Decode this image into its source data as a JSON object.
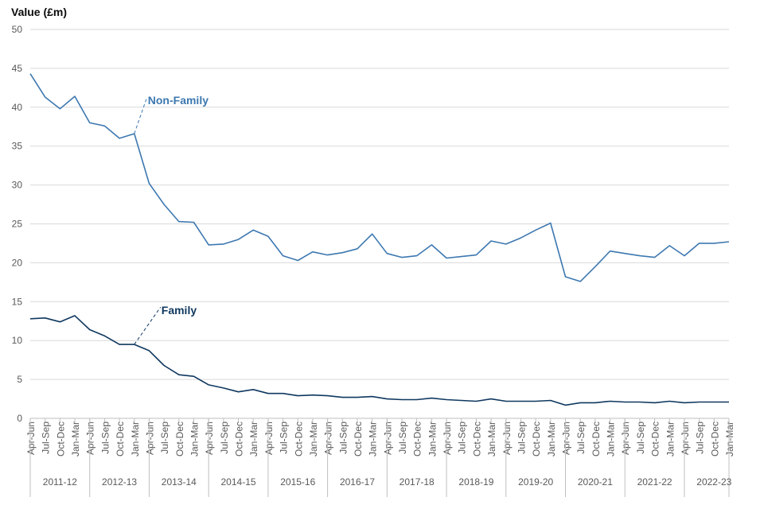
{
  "chart_data": {
    "type": "line",
    "title": "",
    "ylabel": "Value (£m)",
    "xlabel": "",
    "ylim": [
      0,
      50
    ],
    "yticks": [
      0,
      5,
      10,
      15,
      20,
      25,
      30,
      35,
      40,
      45,
      50
    ],
    "grid": true,
    "quarters": [
      "Apr-Jun",
      "Jul-Sep",
      "Oct-Dec",
      "Jan-Mar"
    ],
    "years": [
      "2011-12",
      "2012-13",
      "2013-14",
      "2014-15",
      "2015-16",
      "2016-17",
      "2017-18",
      "2018-19",
      "2019-20",
      "2020-21",
      "2021-22",
      "2022-23"
    ],
    "series": [
      {
        "name": "Non-Family",
        "color": "#3d78b0",
        "values": [
          44.3,
          41.3,
          39.8,
          41.4,
          38.0,
          37.6,
          36.0,
          36.6,
          30.2,
          27.5,
          25.3,
          25.2,
          22.3,
          22.4,
          23.0,
          24.2,
          23.4,
          20.9,
          20.3,
          21.4,
          21.0,
          21.3,
          21.8,
          23.7,
          21.2,
          20.7,
          20.9,
          22.3,
          20.6,
          20.8,
          21.0,
          22.8,
          22.4,
          23.2,
          24.2,
          25.1,
          18.2,
          17.6,
          19.5,
          21.5,
          21.2,
          20.9,
          20.7,
          22.2,
          20.9,
          22.5,
          22.5,
          22.7
        ]
      },
      {
        "name": "Family",
        "color": "#0f385f",
        "values": [
          12.8,
          12.9,
          12.4,
          13.2,
          11.4,
          10.6,
          9.5,
          9.5,
          8.7,
          6.8,
          5.6,
          5.4,
          4.3,
          3.9,
          3.4,
          3.7,
          3.2,
          3.2,
          2.9,
          3.0,
          2.9,
          2.7,
          2.7,
          2.8,
          2.5,
          2.4,
          2.4,
          2.6,
          2.4,
          2.3,
          2.2,
          2.5,
          2.2,
          2.2,
          2.2,
          2.3,
          1.7,
          2.0,
          2.0,
          2.2,
          2.1,
          2.1,
          2.0,
          2.2,
          2.0,
          2.1,
          2.1,
          2.1
        ]
      }
    ],
    "annotations": [
      {
        "text": "Non-Family",
        "series": "Non-Family",
        "label_value": 41.5,
        "anchor_index": 7
      },
      {
        "text": "Family",
        "series": "Family",
        "label_value": 14.5,
        "anchor_index": 7
      }
    ]
  }
}
